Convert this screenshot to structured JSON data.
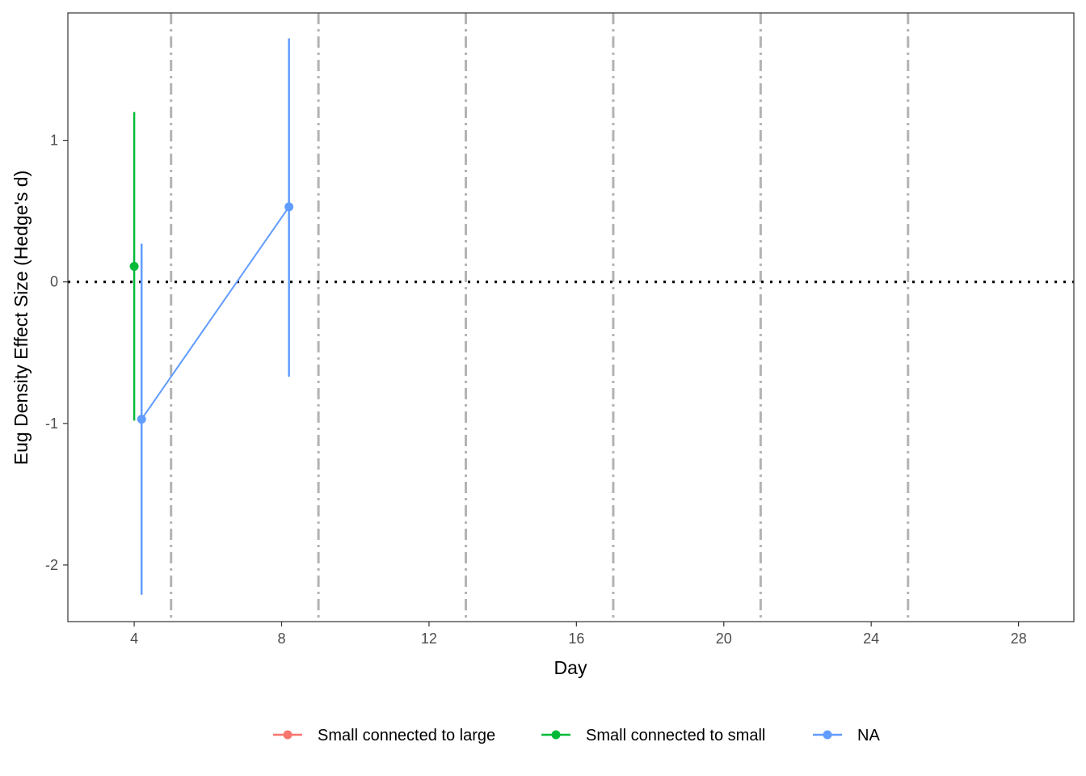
{
  "chart_data": {
    "type": "line",
    "title": "",
    "xlabel": "Day",
    "ylabel": "Eug Density Effect Size (Hedge's d)",
    "xlim": [
      2.2,
      29.5
    ],
    "ylim": [
      -2.4,
      1.9
    ],
    "x_ticks": [
      4,
      8,
      12,
      16,
      20,
      24,
      28
    ],
    "y_ticks": [
      1,
      0,
      -1,
      -2
    ],
    "reference_line_y": 0,
    "vertical_lines_x": [
      5,
      9,
      13,
      17,
      21,
      25
    ],
    "grid": false,
    "legend_position": "bottom",
    "series": [
      {
        "name": "Small connected to large",
        "color": "#F8766D",
        "points": []
      },
      {
        "name": "Small connected to small",
        "color": "#00BA38",
        "points": [
          {
            "x": 4,
            "y": 0.11,
            "ymin": -0.98,
            "ymax": 1.2
          }
        ]
      },
      {
        "name": "NA",
        "color": "#619CFF",
        "points": [
          {
            "x": 4.2,
            "y": -0.97,
            "ymin": -2.21,
            "ymax": 0.27
          },
          {
            "x": 8.2,
            "y": 0.53,
            "ymin": -0.67,
            "ymax": 1.72
          }
        ]
      }
    ]
  }
}
